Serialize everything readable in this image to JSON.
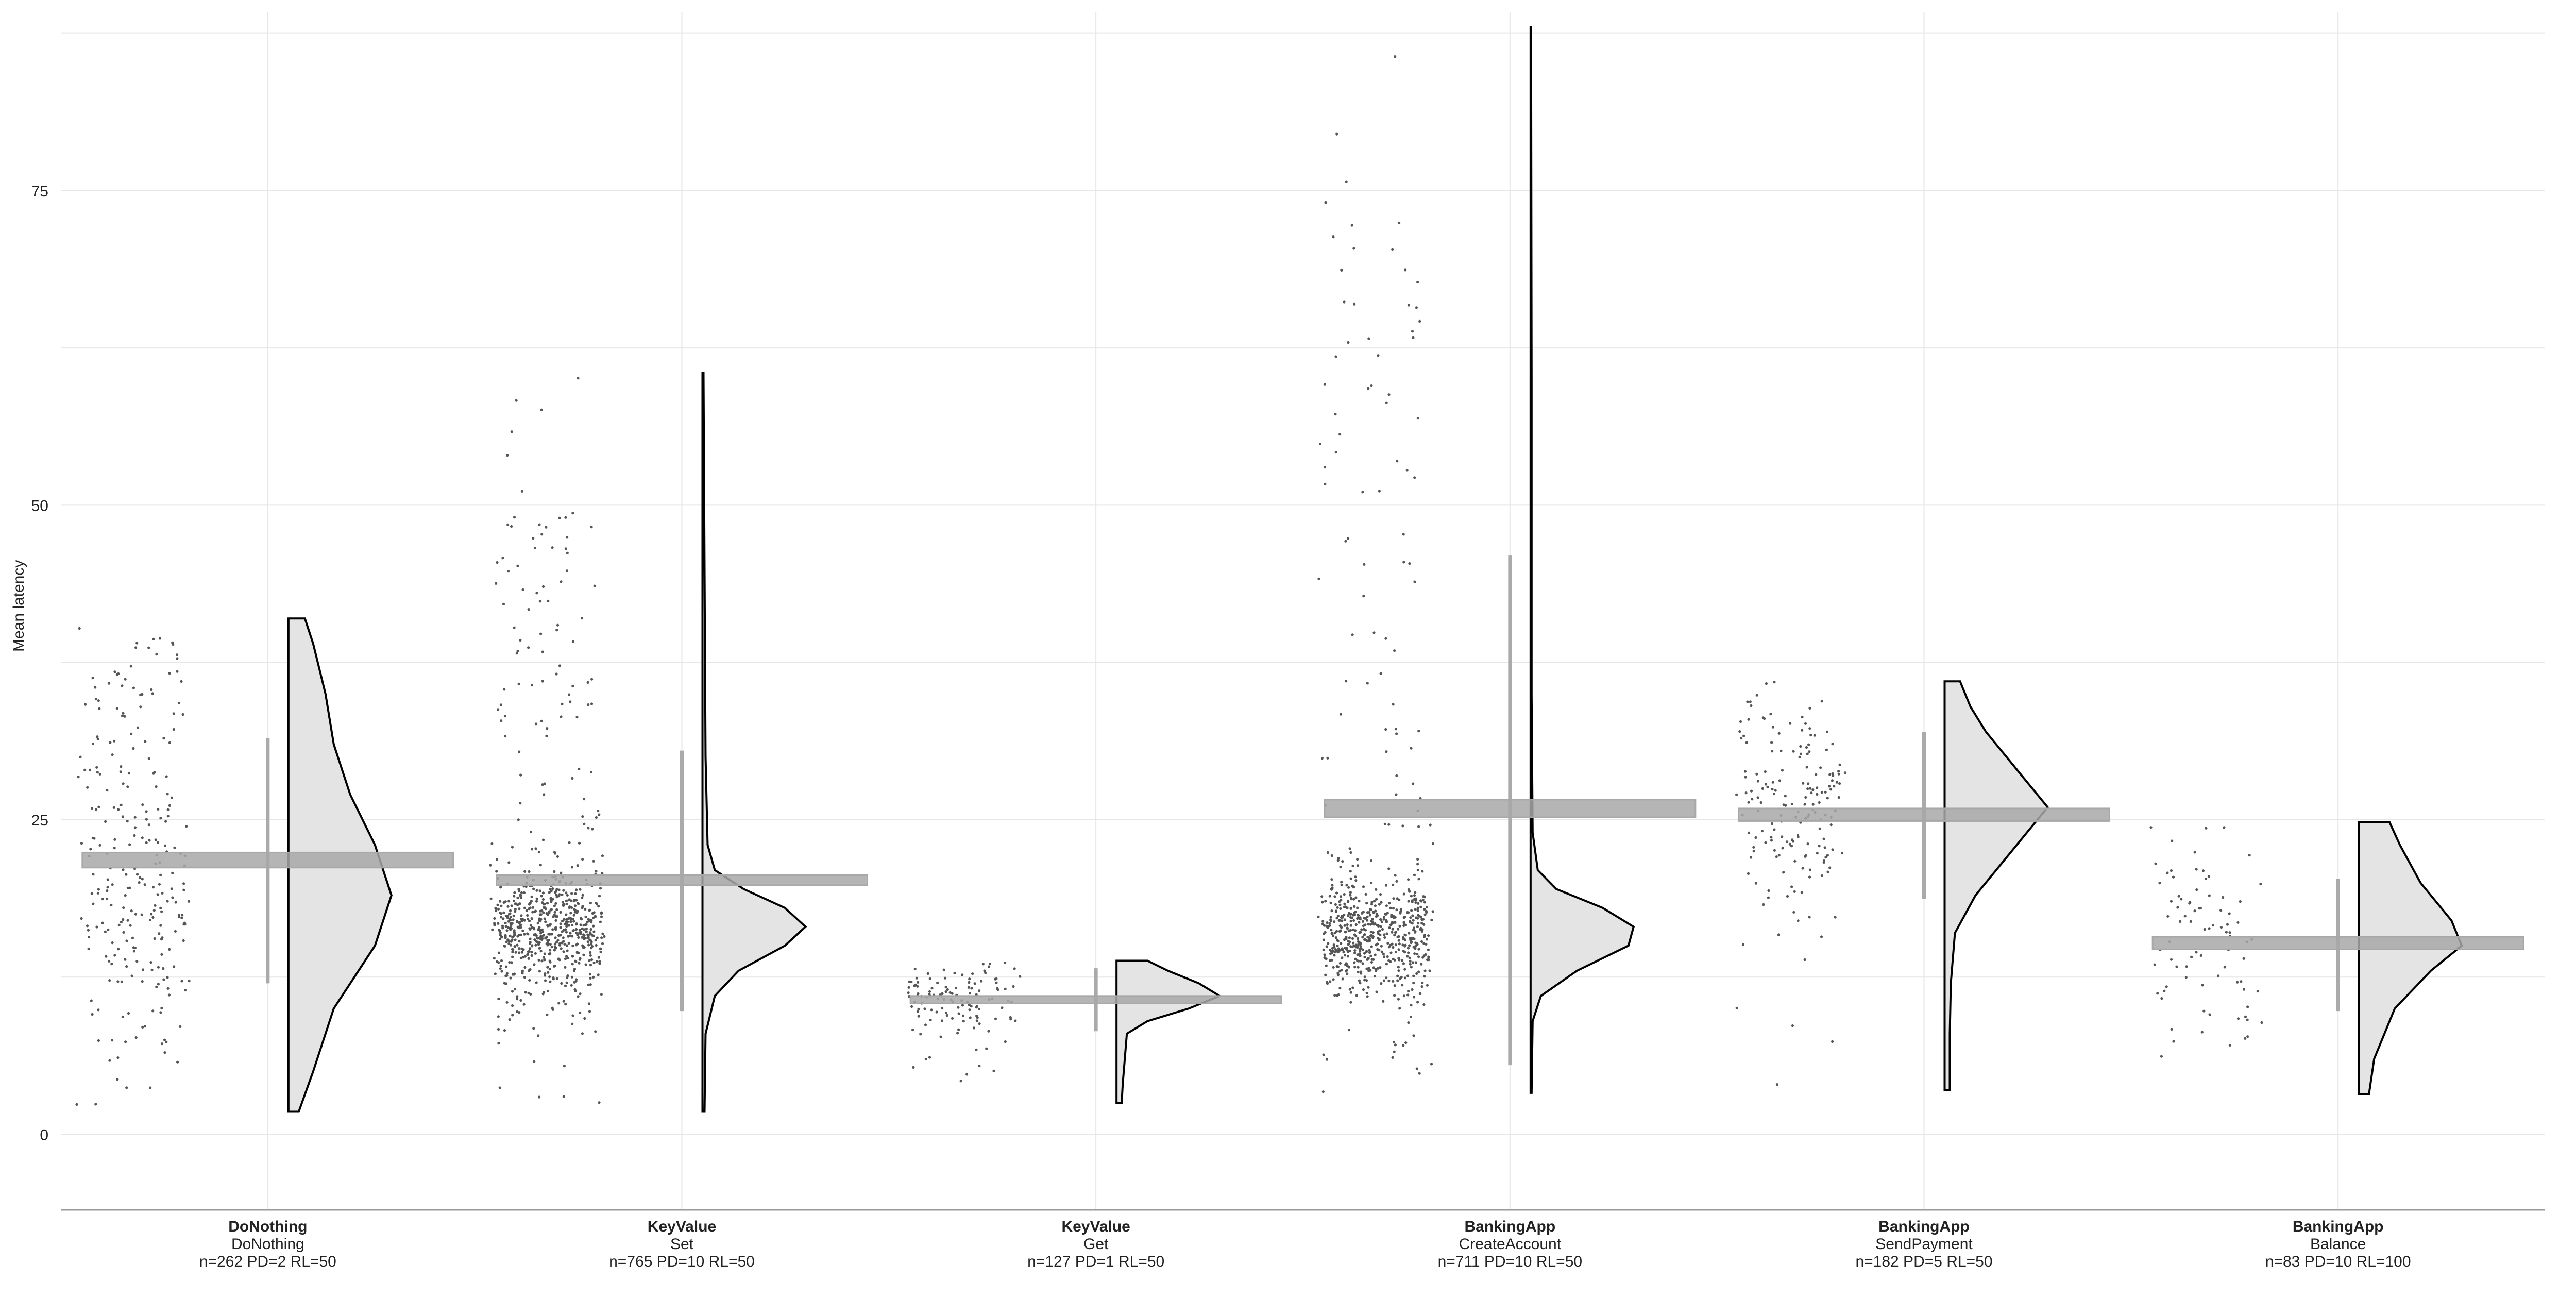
{
  "chart_data": {
    "type": "raincloud",
    "ylabel": "Mean latency",
    "xlabel": "",
    "ylim": [
      -6,
      89
    ],
    "yticks": [
      0,
      25,
      50,
      75
    ],
    "grid": true,
    "colors": {
      "violin_fill": "#e4e4e4",
      "violin_stroke": "#000000",
      "mean_bar": "#a8a8a8",
      "whisker": "#aaaaaa",
      "points": "#555555"
    },
    "groups": [
      {
        "app": "DoNothing",
        "endpoint": "DoNothing",
        "info": "n=262 PD=2 RL=50",
        "mean": 21.8,
        "se_low": 21.2,
        "se_high": 22.4,
        "whisker_low": 12,
        "whisker_high": 31.5,
        "min": 1.8,
        "max": 41,
        "density": [
          [
            1.8,
            0.05
          ],
          [
            5,
            0.12
          ],
          [
            10,
            0.22
          ],
          [
            15,
            0.42
          ],
          [
            19,
            0.5
          ],
          [
            23,
            0.42
          ],
          [
            27,
            0.3
          ],
          [
            31,
            0.22
          ],
          [
            35,
            0.18
          ],
          [
            39,
            0.12
          ],
          [
            41,
            0.08
          ]
        ]
      },
      {
        "app": "KeyValue",
        "endpoint": "Set",
        "info": "n=765 PD=10 RL=50",
        "mean": 20.2,
        "se_low": 19.8,
        "se_high": 20.6,
        "whisker_low": 9.8,
        "whisker_high": 30.5,
        "min": 1.8,
        "max": 60.5,
        "density": [
          [
            1.8,
            0.02
          ],
          [
            8,
            0.03
          ],
          [
            11,
            0.12
          ],
          [
            13,
            0.35
          ],
          [
            15,
            0.8
          ],
          [
            16.5,
            1.0
          ],
          [
            18,
            0.8
          ],
          [
            19.5,
            0.4
          ],
          [
            21,
            0.12
          ],
          [
            23,
            0.05
          ],
          [
            30,
            0.03
          ],
          [
            45,
            0.02
          ],
          [
            60.5,
            0.01
          ]
        ]
      },
      {
        "app": "KeyValue",
        "endpoint": "Get",
        "info": "n=127 PD=1 RL=50",
        "mean": 10.7,
        "se_low": 10.4,
        "se_high": 11.0,
        "whisker_low": 8.2,
        "whisker_high": 13.2,
        "min": 2.5,
        "max": 13.8,
        "density": [
          [
            2.5,
            0.05
          ],
          [
            4,
            0.06
          ],
          [
            6,
            0.08
          ],
          [
            8,
            0.1
          ],
          [
            9,
            0.3
          ],
          [
            10,
            0.7
          ],
          [
            11,
            1.0
          ],
          [
            12,
            0.8
          ],
          [
            13,
            0.5
          ],
          [
            13.8,
            0.3
          ]
        ]
      },
      {
        "app": "BankingApp",
        "endpoint": "CreateAccount",
        "info": "n=711 PD=10 RL=50",
        "mean": 25.9,
        "se_low": 25.2,
        "se_high": 26.6,
        "whisker_low": 5.5,
        "whisker_high": 46,
        "min": 3.3,
        "max": 88,
        "density": [
          [
            3.3,
            0.01
          ],
          [
            9,
            0.02
          ],
          [
            11,
            0.1
          ],
          [
            13,
            0.45
          ],
          [
            15,
            0.95
          ],
          [
            16.5,
            1.0
          ],
          [
            18,
            0.7
          ],
          [
            19.5,
            0.25
          ],
          [
            21,
            0.07
          ],
          [
            24,
            0.02
          ],
          [
            35,
            0.01
          ],
          [
            60,
            0.01
          ],
          [
            88,
            0.005
          ]
        ]
      },
      {
        "app": "BankingApp",
        "endpoint": "SendPayment",
        "info": "n=182 PD=5 RL=50",
        "mean": 25.4,
        "se_low": 24.9,
        "se_high": 25.9,
        "whisker_low": 18.7,
        "whisker_high": 32,
        "min": 3.5,
        "max": 36,
        "density": [
          [
            3.5,
            0.05
          ],
          [
            8,
            0.05
          ],
          [
            12,
            0.06
          ],
          [
            16,
            0.1
          ],
          [
            19,
            0.3
          ],
          [
            23,
            0.7
          ],
          [
            26,
            1.0
          ],
          [
            29,
            0.7
          ],
          [
            32,
            0.4
          ],
          [
            34,
            0.25
          ],
          [
            36,
            0.15
          ]
        ]
      },
      {
        "app": "BankingApp",
        "endpoint": "Balance",
        "info": "n=83 PD=10 RL=100",
        "mean": 15.2,
        "se_low": 14.7,
        "se_high": 15.7,
        "whisker_low": 9.8,
        "whisker_high": 20.3,
        "min": 3.2,
        "max": 24.8,
        "density": [
          [
            3.2,
            0.1
          ],
          [
            6,
            0.15
          ],
          [
            10,
            0.35
          ],
          [
            13,
            0.7
          ],
          [
            15,
            1.0
          ],
          [
            17,
            0.9
          ],
          [
            20,
            0.6
          ],
          [
            23,
            0.4
          ],
          [
            24.8,
            0.3
          ]
        ]
      }
    ]
  }
}
